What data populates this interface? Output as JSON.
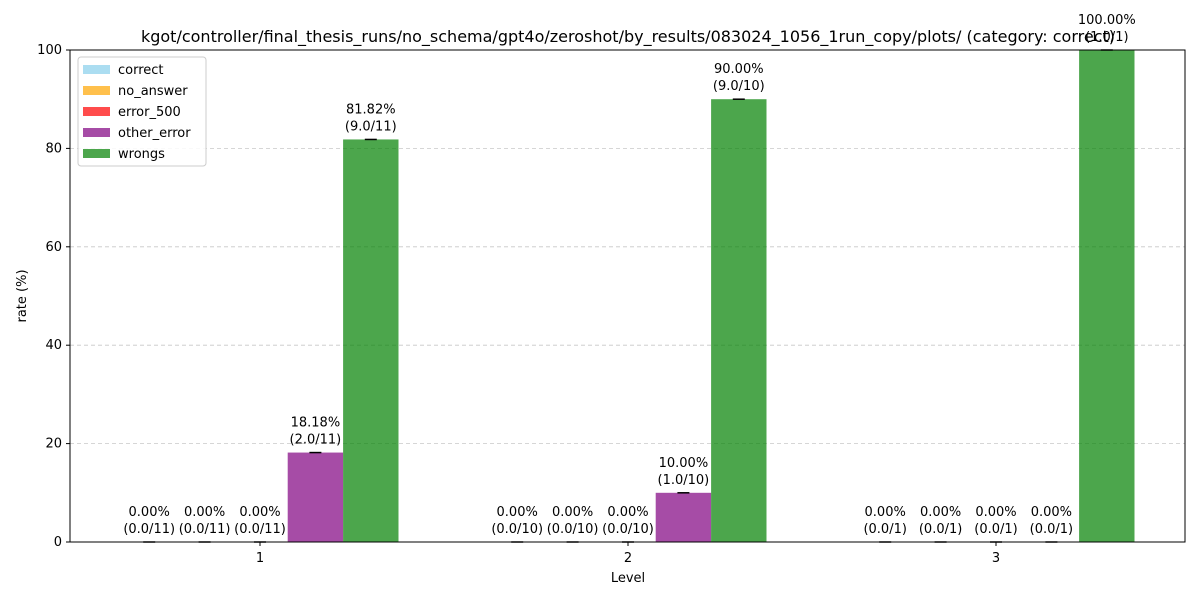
{
  "chart_data": {
    "type": "bar",
    "title": "kgot/controller/final_thesis_runs/no_schema/gpt4o/zeroshot/by_results/083024_1056_1run_copy/plots/ (category: correct)",
    "xlabel": "Level",
    "ylabel": "rate (%)",
    "ylim": [
      0,
      100
    ],
    "yticks": [
      0,
      20,
      40,
      60,
      80,
      100
    ],
    "grid": "y-dashed",
    "legend_position": "top-left",
    "categories": [
      "1",
      "2",
      "3"
    ],
    "series": [
      {
        "name": "correct",
        "color": "#87ceeb",
        "values": [
          0.0,
          0.0,
          0.0
        ],
        "labels": [
          "0.00%",
          "0.00%",
          "0.00%"
        ],
        "counts": [
          "(0.0/11)",
          "(0.0/10)",
          "(0.0/1)"
        ]
      },
      {
        "name": "no_answer",
        "color": "#ffa500",
        "values": [
          0.0,
          0.0,
          0.0
        ],
        "labels": [
          "0.00%",
          "0.00%",
          "0.00%"
        ],
        "counts": [
          "(0.0/11)",
          "(0.0/10)",
          "(0.0/1)"
        ]
      },
      {
        "name": "error_500",
        "color": "#ff0000",
        "values": [
          0.0,
          0.0,
          0.0
        ],
        "labels": [
          "0.00%",
          "0.00%",
          "0.00%"
        ],
        "counts": [
          "(0.0/11)",
          "(0.0/10)",
          "(0.0/1)"
        ]
      },
      {
        "name": "other_error",
        "color": "#800080",
        "values": [
          18.18,
          10.0,
          0.0
        ],
        "labels": [
          "18.18%",
          "10.00%",
          "0.00%"
        ],
        "counts": [
          "(2.0/11)",
          "(1.0/10)",
          "(0.0/1)"
        ]
      },
      {
        "name": "wrongs",
        "color": "#008000",
        "values": [
          81.82,
          90.0,
          100.0
        ],
        "labels": [
          "81.82%",
          "90.00%",
          "100.00%"
        ],
        "counts": [
          "(9.0/11)",
          "(9.0/10)",
          "(1.0/1)"
        ]
      }
    ]
  }
}
